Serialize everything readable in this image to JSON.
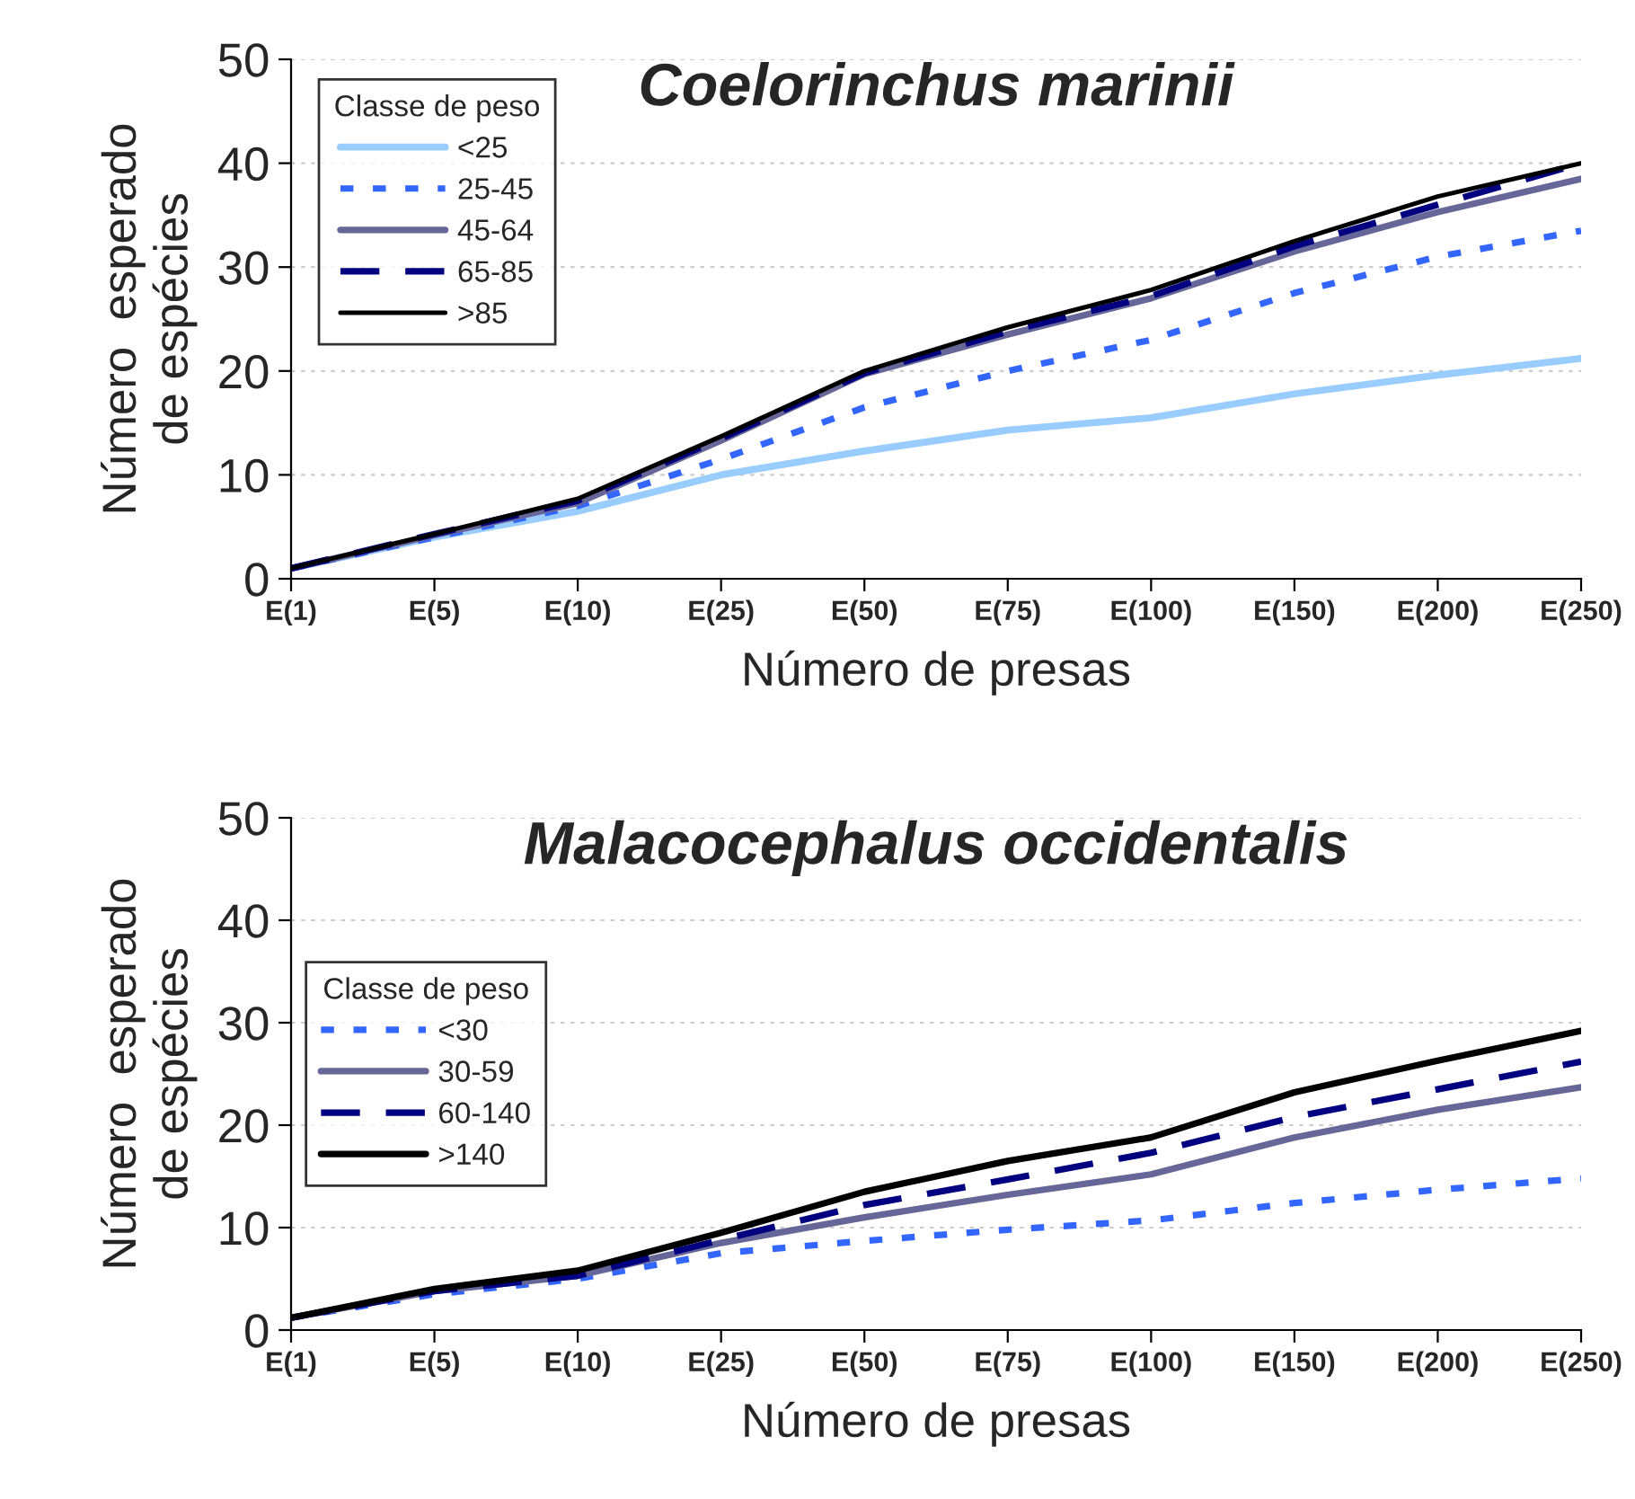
{
  "chart_data": [
    {
      "type": "line",
      "title": "Coelorinchus marinii",
      "xlabel": "Número de presas",
      "ylabel": "Número  esperado\nde espécies",
      "legend_title": "Classe de peso",
      "legend": "top left",
      "grid": "y",
      "categories": [
        "E(1)",
        "E(5)",
        "E(10)",
        "E(25)",
        "E(50)",
        "E(75)",
        "E(100)",
        "E(150)",
        "E(200)",
        "E(250)"
      ],
      "ylim": [
        0,
        50
      ],
      "yticks": [
        0,
        10,
        20,
        30,
        40,
        50
      ],
      "series": [
        {
          "name": "<25",
          "color": "#99ccff",
          "line_style": "solid",
          "values": [
            1,
            4,
            6.5,
            10,
            12.3,
            14.3,
            15.5,
            17.8,
            19.6,
            21.2
          ]
        },
        {
          "name": "25-45",
          "color": "#3366ff",
          "line_style": "dotted",
          "values": [
            1,
            4,
            7,
            11.5,
            16.5,
            20,
            23,
            27.5,
            31,
            33.5
          ]
        },
        {
          "name": "45-64",
          "color": "#666699",
          "line_style": "solid",
          "values": [
            1,
            4.2,
            7.3,
            13.3,
            19.7,
            23.5,
            27,
            31.5,
            35.3,
            38.5
          ]
        },
        {
          "name": "65-85",
          "color": "#000080",
          "line_style": "dashed",
          "values": [
            1,
            4.3,
            7.5,
            13.5,
            19.8,
            23.8,
            27.2,
            32,
            36,
            40
          ]
        },
        {
          "name": ">85",
          "color": "#000000",
          "line_style": "solid",
          "values": [
            1,
            4.3,
            7.7,
            13.7,
            20,
            24.2,
            27.8,
            32.5,
            36.8,
            40
          ]
        }
      ]
    },
    {
      "type": "line",
      "title": "Malacocephalus occidentalis",
      "xlabel": "Número de presas",
      "ylabel": "Número  esperado\nde espécies",
      "legend_title": "Classe de peso",
      "legend": "left",
      "grid": "y",
      "categories": [
        "E(1)",
        "E(5)",
        "E(10)",
        "E(25)",
        "E(50)",
        "E(75)",
        "E(100)",
        "E(150)",
        "E(200)",
        "E(250)"
      ],
      "ylim": [
        0,
        50
      ],
      "yticks": [
        0,
        10,
        20,
        30,
        40,
        50
      ],
      "series": [
        {
          "name": "<30",
          "color": "#3366ff",
          "line_style": "dotted",
          "values": [
            1.2,
            3.5,
            5,
            7.5,
            8.7,
            9.8,
            10.7,
            12.4,
            13.7,
            14.8
          ]
        },
        {
          "name": "30-59",
          "color": "#666699",
          "line_style": "solid",
          "values": [
            1.2,
            3.8,
            5.3,
            8.5,
            11,
            13.2,
            15.2,
            18.8,
            21.5,
            23.7
          ]
        },
        {
          "name": "60-140",
          "color": "#000080",
          "line_style": "dashed",
          "values": [
            1.2,
            3.8,
            5.3,
            8.8,
            12.2,
            14.7,
            17.3,
            20.8,
            23.5,
            26.2
          ]
        },
        {
          "name": ">140",
          "color": "#000000",
          "line_style": "solid",
          "values": [
            1.2,
            4,
            5.8,
            9.5,
            13.5,
            16.5,
            18.8,
            23.2,
            26.3,
            29.2
          ]
        }
      ]
    }
  ]
}
